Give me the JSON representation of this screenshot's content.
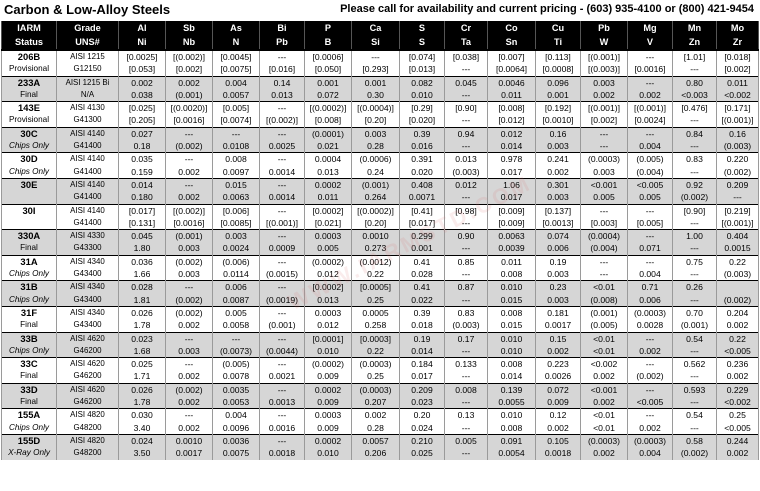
{
  "title": "Carbon & Low-Alloy Steels",
  "phone_note": "Please call for availability and current pricing - (603) 935-4100 or (800) 421-9454",
  "watermark": "WWW.IARMSTD.COM",
  "header_top": [
    "IARM",
    "Grade",
    "Al",
    "Sb",
    "As",
    "Bi",
    "P",
    "Ca",
    "S",
    "Cr",
    "Co",
    "Cu",
    "Pb",
    "Mg",
    "Mn",
    "Mo"
  ],
  "header_bottom": [
    "Status",
    "UNS#",
    "Ni",
    "Nb",
    "N",
    "Pb",
    "B",
    "Si",
    "S",
    "Ta",
    "Sn",
    "Ti",
    "W",
    "V",
    "Zn",
    "Zr"
  ],
  "rows": [
    {
      "id": "206B",
      "status": "Provisional",
      "status_italic": false,
      "shaded": false,
      "top": [
        "AISI 1215",
        "[0.0025]",
        "[(0.002)]",
        "[0.0045]",
        "---",
        "[0.0006]",
        "---",
        "[0.074]",
        "[0.038]",
        "[0.007]",
        "[0.113]",
        "[(0.001)]",
        "---",
        "[1.01]",
        "[0.018]"
      ],
      "bot": [
        "G12150",
        "[0.053]",
        "[0.002]",
        "[0.0075]",
        "[0.016]",
        "[0.050]",
        "[0.293]",
        "[0.013]",
        "---",
        "[0.0064]",
        "[0.0008]",
        "[(0.003)]",
        "[0.0016]",
        "---",
        "[0.002]"
      ]
    },
    {
      "id": "233A",
      "status": "Final",
      "status_italic": false,
      "shaded": true,
      "top": [
        "AISI 1215 Bi",
        "0.002",
        "0.002",
        "0.004",
        "0.14",
        "0.001",
        "0.001",
        "0.082",
        "0.045",
        "0.0046",
        "0.096",
        "0.003",
        "---",
        "0.80",
        "0.011"
      ],
      "bot": [
        "N/A",
        "0.038",
        "(0.001)",
        "0.0057",
        "0.013",
        "0.072",
        "0.30",
        "0.010",
        "---",
        "0.011",
        "0.001",
        "0.002",
        "0.002",
        "<0.003",
        "<0.002"
      ]
    },
    {
      "id": "143E",
      "status": "Provisional",
      "status_italic": false,
      "shaded": false,
      "top": [
        "AISI 4130",
        "[0.025]",
        "[(0.0020)]",
        "[0.005]",
        "---",
        "[(0.0002)]",
        "[(0.0004)]",
        "[0.29]",
        "[0.90]",
        "[0.008]",
        "[0.192]",
        "[(0.001)]",
        "[(0.001)]",
        "[0.476]",
        "[0.171]"
      ],
      "bot": [
        "G41300",
        "[0.205]",
        "[0.0016]",
        "[0.0074]",
        "[(0.002)]",
        "[0.008]",
        "[0.20]",
        "[0.020]",
        "---",
        "[0.012]",
        "[0.0010]",
        "[0.002]",
        "[0.0024]",
        "---",
        "[(0.001)]"
      ]
    },
    {
      "id": "30C",
      "status": "Chips Only",
      "status_italic": true,
      "shaded": true,
      "top": [
        "AISI 4140",
        "0.027",
        "---",
        "---",
        "---",
        "(0.0001)",
        "0.003",
        "0.39",
        "0.94",
        "0.012",
        "0.16",
        "---",
        "---",
        "0.84",
        "0.16"
      ],
      "bot": [
        "G41400",
        "0.18",
        "(0.002)",
        "0.0108",
        "0.0025",
        "0.021",
        "0.28",
        "0.016",
        "---",
        "0.014",
        "0.003",
        "---",
        "0.004",
        "---",
        "(0.003)"
      ]
    },
    {
      "id": "30D",
      "status": "Chips Only",
      "status_italic": true,
      "shaded": false,
      "top": [
        "AISI 4140",
        "0.035",
        "---",
        "0.008",
        "---",
        "0.0004",
        "(0.0006)",
        "0.391",
        "0.013",
        "0.978",
        "0.241",
        "(0.0003)",
        "(0.005)",
        "0.83",
        "0.220"
      ],
      "bot": [
        "G41400",
        "0.159",
        "0.002",
        "0.0097",
        "0.0014",
        "0.013",
        "0.24",
        "0.020",
        "(0.003)",
        "0.017",
        "0.002",
        "0.003",
        "(0.004)",
        "---",
        "(0.002)"
      ]
    },
    {
      "id": "30E",
      "status": "",
      "status_italic": false,
      "shaded": true,
      "top": [
        "AISI 4140",
        "0.014",
        "---",
        "0.015",
        "---",
        "0.0002",
        "(0.001)",
        "0.408",
        "0.012",
        "1.06",
        "0.301",
        "<0.001",
        "<0.005",
        "0.92",
        "0.209"
      ],
      "bot": [
        "G41400",
        "0.180",
        "0.002",
        "0.0063",
        "0.0014",
        "0.011",
        "0.264",
        "0.0071",
        "---",
        "0.017",
        "0.003",
        "0.005",
        "0.005",
        "(0.002)",
        "---"
      ]
    },
    {
      "id": "30I",
      "status": "",
      "status_italic": false,
      "shaded": false,
      "top": [
        "AISI 4140",
        "[0.017]",
        "[(0.002)]",
        "[0.006]",
        "---",
        "[0.0002]",
        "[(0.0002)]",
        "[0.41]",
        "[0.98]",
        "[0.009]",
        "[0.137]",
        "---",
        "---",
        "[0.90]",
        "[0.219]"
      ],
      "bot": [
        "G41400",
        "[0.131]",
        "[0.0016]",
        "[0.0085]",
        "[(0.001)]",
        "[0.021]",
        "[0.20]",
        "[0.017]",
        "---",
        "[0.009]",
        "[0.0013]",
        "[0.003]",
        "[0.005]",
        "---",
        "[(0.001)]"
      ]
    },
    {
      "id": "330A",
      "status": "Final",
      "status_italic": false,
      "shaded": true,
      "top": [
        "AISI 4330",
        "0.045",
        "(0.001)",
        "0.003",
        "---",
        "0.0003",
        "0.0010",
        "0.299",
        "0.90",
        "0.0063",
        "0.074",
        "(0.0004)",
        "---",
        "1.00",
        "0.404"
      ],
      "bot": [
        "G43300",
        "1.80",
        "0.003",
        "0.0024",
        "0.0009",
        "0.005",
        "0.273",
        "0.001",
        "---",
        "0.0039",
        "0.006",
        "(0.004)",
        "0.071",
        "---",
        "0.0015"
      ]
    },
    {
      "id": "31A",
      "status": "Chips Only",
      "status_italic": true,
      "shaded": false,
      "top": [
        "AISI 4340",
        "0.036",
        "(0.002)",
        "(0.006)",
        "---",
        "(0.0002)",
        "(0.0012)",
        "0.41",
        "0.85",
        "0.011",
        "0.19",
        "---",
        "---",
        "0.75",
        "0.22"
      ],
      "bot": [
        "G43400",
        "1.66",
        "0.003",
        "0.0114",
        "(0.0015)",
        "0.012",
        "0.22",
        "0.028",
        "---",
        "0.008",
        "0.003",
        "---",
        "0.004",
        "---",
        "(0.003)"
      ]
    },
    {
      "id": "31B",
      "status": "Chips Only",
      "status_italic": true,
      "shaded": true,
      "top": [
        "AISI 4340",
        "0.028",
        "---",
        "0.006",
        "---",
        "[0.0002]",
        "[0.0005]",
        "0.41",
        "0.87",
        "0.010",
        "0.23",
        "<0.01",
        "0.71",
        "0.26",
        ""
      ],
      "bot": [
        "G43400",
        "1.81",
        "(0.002)",
        "0.0087",
        "(0.0019)",
        "0.013",
        "0.25",
        "0.022",
        "---",
        "0.015",
        "0.003",
        "(0.008)",
        "0.006",
        "---",
        "(0.002)"
      ]
    },
    {
      "id": "31F",
      "status": "Final",
      "status_italic": false,
      "shaded": false,
      "top": [
        "AISI 4340",
        "0.026",
        "(0.002)",
        "0.005",
        "---",
        "0.0003",
        "0.0005",
        "0.39",
        "0.83",
        "0.008",
        "0.181",
        "(0.001)",
        "(0.0003)",
        "0.70",
        "0.204"
      ],
      "bot": [
        "G43400",
        "1.78",
        "0.002",
        "0.0058",
        "(0.001)",
        "0.012",
        "0.258",
        "0.018",
        "(0.003)",
        "0.015",
        "0.0017",
        "(0.005)",
        "0.0028",
        "(0.001)",
        "0.002"
      ]
    },
    {
      "id": "33B",
      "status": "Chips Only",
      "status_italic": true,
      "shaded": true,
      "top": [
        "AISI 4620",
        "0.023",
        "---",
        "---",
        "---",
        "[0.0001]",
        "[0.0003]",
        "0.19",
        "0.17",
        "0.010",
        "0.15",
        "<0.01",
        "---",
        "0.54",
        "0.22"
      ],
      "bot": [
        "G46200",
        "1.68",
        "0.003",
        "(0.0073)",
        "(0.0044)",
        "0.010",
        "0.22",
        "0.014",
        "---",
        "0.010",
        "0.002",
        "<0.01",
        "0.002",
        "---",
        "<0.005"
      ]
    },
    {
      "id": "33C",
      "status": "Final",
      "status_italic": false,
      "shaded": false,
      "top": [
        "AISI 4620",
        "0.025",
        "---",
        "(0.005)",
        "---",
        "(0.0002)",
        "(0.0003)",
        "0.184",
        "0.133",
        "0.008",
        "0.223",
        "<0.002",
        "---",
        "0.562",
        "0.236"
      ],
      "bot": [
        "G46200",
        "1.71",
        "0.002",
        "0.0078",
        "0.0021",
        "0.009",
        "0.25",
        "0.017",
        "---",
        "0.014",
        "0.0026",
        "0.002",
        "(0.002)",
        "---",
        "0.002"
      ]
    },
    {
      "id": "33D",
      "status": "Final",
      "status_italic": false,
      "shaded": true,
      "top": [
        "AISI 4620",
        "0.026",
        "(0.002)",
        "0.0035",
        "---",
        "0.0002",
        "(0.0003)",
        "0.209",
        "0.008",
        "0.139",
        "0.072",
        "<0.001",
        "---",
        "0.593",
        "0.229"
      ],
      "bot": [
        "G46200",
        "1.78",
        "0.002",
        "0.0053",
        "0.0013",
        "0.009",
        "0.207",
        "0.023",
        "---",
        "0.0055",
        "0.009",
        "0.002",
        "<0.005",
        "---",
        "<0.002"
      ]
    },
    {
      "id": "155A",
      "status": "Chips Only",
      "status_italic": true,
      "shaded": false,
      "top": [
        "AISI 4820",
        "0.030",
        "---",
        "0.004",
        "---",
        "0.0003",
        "0.002",
        "0.20",
        "0.13",
        "0.010",
        "0.12",
        "<0.01",
        "---",
        "0.54",
        "0.25"
      ],
      "bot": [
        "G48200",
        "3.40",
        "0.002",
        "0.0096",
        "0.0016",
        "0.009",
        "0.28",
        "0.024",
        "---",
        "0.008",
        "0.002",
        "<0.01",
        "0.002",
        "---",
        "<0.005"
      ]
    },
    {
      "id": "155D",
      "status": "X-Ray Only",
      "status_italic": true,
      "shaded": true,
      "top": [
        "AISI 4820",
        "0.024",
        "0.0010",
        "0.0036",
        "---",
        "0.0002",
        "0.0057",
        "0.210",
        "0.005",
        "0.091",
        "0.105",
        "(0.0003)",
        "(0.0003)",
        "0.58",
        "0.244"
      ],
      "bot": [
        "G48200",
        "3.50",
        "0.0017",
        "0.0075",
        "0.0018",
        "0.010",
        "0.206",
        "0.025",
        "---",
        "0.0054",
        "0.0018",
        "0.002",
        "0.004",
        "(0.002)",
        "0.002"
      ]
    }
  ]
}
